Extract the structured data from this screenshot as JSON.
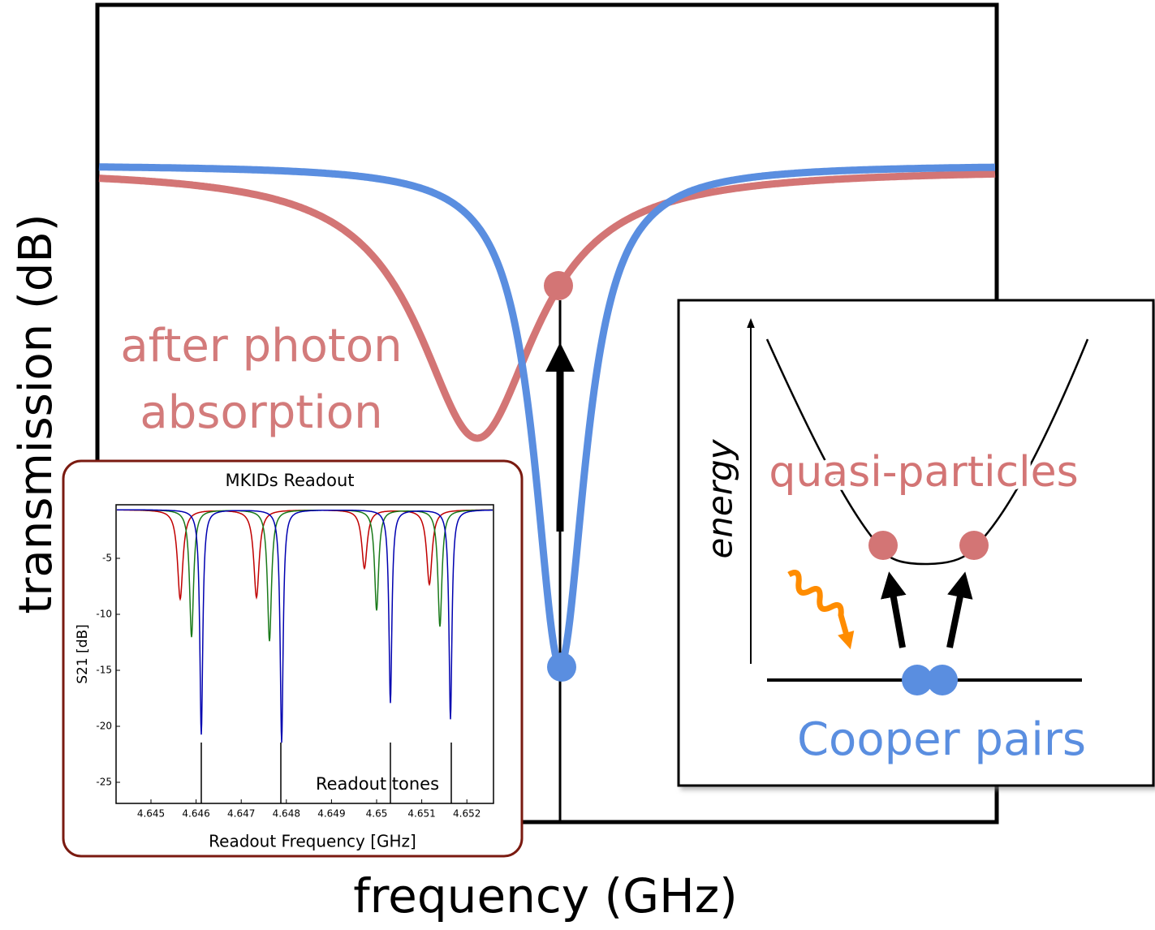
{
  "main_plot": {
    "y_label": "transmission (dB)",
    "x_label": "frequency (GHz)",
    "annotation": [
      "after photon",
      "absorption"
    ]
  },
  "inset_readout": {
    "title": "MKIDs Readout",
    "y_label": "S21   [dB]",
    "x_label": "Readout Frequency   [GHz]",
    "annotation": "Readout tones",
    "yticks": [
      "-5",
      "-10",
      "-15",
      "-20",
      "-25"
    ],
    "xticks": [
      "4.645",
      "4.646",
      "4.647",
      "4.648",
      "4.649",
      "4.65",
      "4.651",
      "4.652"
    ]
  },
  "inset_energy": {
    "axis_label": "energy",
    "upper_label": "quasi-particles",
    "lower_label": "Cooper pairs"
  }
}
